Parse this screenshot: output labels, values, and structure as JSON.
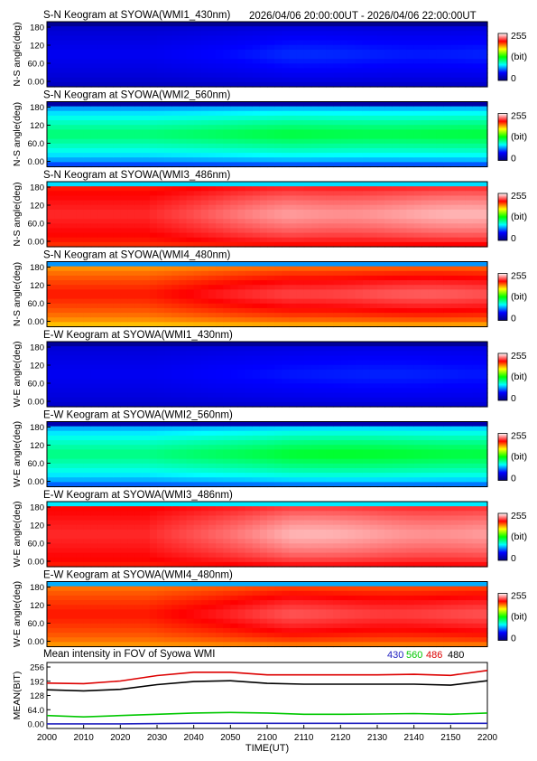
{
  "header": {
    "time_range": "2026/04/06 20:00:00UT - 2026/04/06 22:00:00UT"
  },
  "colorbar": {
    "max_label": "255",
    "unit_label": "(bit)",
    "min_label": "0",
    "colors": [
      "#000080",
      "#0000ff",
      "#00ffff",
      "#00ff00",
      "#ffff00",
      "#ff0000",
      "#ffffff"
    ]
  },
  "keogram_ticks": [
    "180",
    "120",
    "60.0",
    "0.00"
  ],
  "chart_data": [
    {
      "type": "heatmap",
      "title": "S-N Keogram at SYOWA(WMI1_430nm)",
      "ylabel": "N-S angle(deg)",
      "ylim": [
        0,
        180
      ],
      "zlim": [
        0,
        255
      ],
      "edge_level": 0.06,
      "base_level": 0.15,
      "peak_level": 0.2
    },
    {
      "type": "heatmap",
      "title": "S-N Keogram at SYOWA(WMI2_560nm)",
      "ylabel": "N-S angle(deg)",
      "ylim": [
        0,
        180
      ],
      "zlim": [
        0,
        255
      ],
      "edge_level": 0.12,
      "base_level": 0.43,
      "peak_level": 0.47
    },
    {
      "type": "heatmap",
      "title": "S-N Keogram at SYOWA(WMI3_486nm)",
      "ylabel": "N-S angle(deg)",
      "ylim": [
        0,
        180
      ],
      "zlim": [
        0,
        255
      ],
      "edge_level": 0.78,
      "base_level": 0.86,
      "peak_level": 0.96
    },
    {
      "type": "heatmap",
      "title": "S-N Keogram at SYOWA(WMI4_480nm)",
      "ylabel": "N-S angle(deg)",
      "ylim": [
        0,
        180
      ],
      "zlim": [
        0,
        255
      ],
      "edge_level": 0.66,
      "base_level": 0.82,
      "peak_level": 0.9
    },
    {
      "type": "heatmap",
      "title": "E-W Keogram at SYOWA(WMI1_430nm)",
      "ylabel": "W-E angle(deg)",
      "ylim": [
        0,
        180
      ],
      "zlim": [
        0,
        255
      ],
      "edge_level": 0.08,
      "base_level": 0.15,
      "peak_level": 0.19
    },
    {
      "type": "heatmap",
      "title": "E-W Keogram at SYOWA(WMI2_560nm)",
      "ylabel": "W-E angle(deg)",
      "ylim": [
        0,
        180
      ],
      "zlim": [
        0,
        255
      ],
      "edge_level": 0.15,
      "base_level": 0.42,
      "peak_level": 0.48
    },
    {
      "type": "heatmap",
      "title": "E-W Keogram at SYOWA(WMI3_486nm)",
      "ylabel": "W-E angle(deg)",
      "ylim": [
        0,
        180
      ],
      "zlim": [
        0,
        255
      ],
      "edge_level": 0.8,
      "base_level": 0.86,
      "peak_level": 0.96
    },
    {
      "type": "heatmap",
      "title": "E-W Keogram at SYOWA(WMI4_480nm)",
      "ylabel": "W-E angle(deg)",
      "ylim": [
        0,
        180
      ],
      "zlim": [
        0,
        255
      ],
      "edge_level": 0.7,
      "base_level": 0.82,
      "peak_level": 0.9
    },
    {
      "type": "line",
      "title": "Mean intensity in FOV of Syowa WMI",
      "xlabel": "TIME(UT)",
      "ylabel": "MEAN(BIT)",
      "ylim": [
        0,
        256
      ],
      "xlim": [
        0,
        120
      ],
      "x_tick_labels": [
        "2000",
        "2010",
        "2020",
        "2030",
        "2040",
        "2050",
        "2100",
        "2110",
        "2120",
        "2130",
        "2140",
        "2150",
        "2200"
      ],
      "y_tick_labels": [
        "256",
        "192",
        "128",
        "64.0",
        "0.00"
      ],
      "x": [
        0,
        10,
        20,
        30,
        40,
        50,
        60,
        70,
        80,
        90,
        100,
        110,
        120
      ],
      "series": [
        {
          "name": "430",
          "color": "#2020c0",
          "values": [
            18,
            18,
            18,
            19,
            20,
            20,
            20,
            20,
            20,
            20,
            20,
            20,
            20
          ]
        },
        {
          "name": "560",
          "color": "#00c800",
          "values": [
            50,
            45,
            50,
            55,
            60,
            62,
            60,
            55,
            55,
            56,
            58,
            55,
            60
          ]
        },
        {
          "name": "486",
          "color": "#dd0000",
          "values": [
            176,
            174,
            184,
            205,
            218,
            218,
            208,
            208,
            208,
            208,
            210,
            206,
            225
          ]
        },
        {
          "name": "480",
          "color": "#000000",
          "values": [
            150,
            146,
            152,
            170,
            182,
            185,
            175,
            172,
            172,
            172,
            172,
            168,
            185
          ]
        }
      ]
    }
  ]
}
